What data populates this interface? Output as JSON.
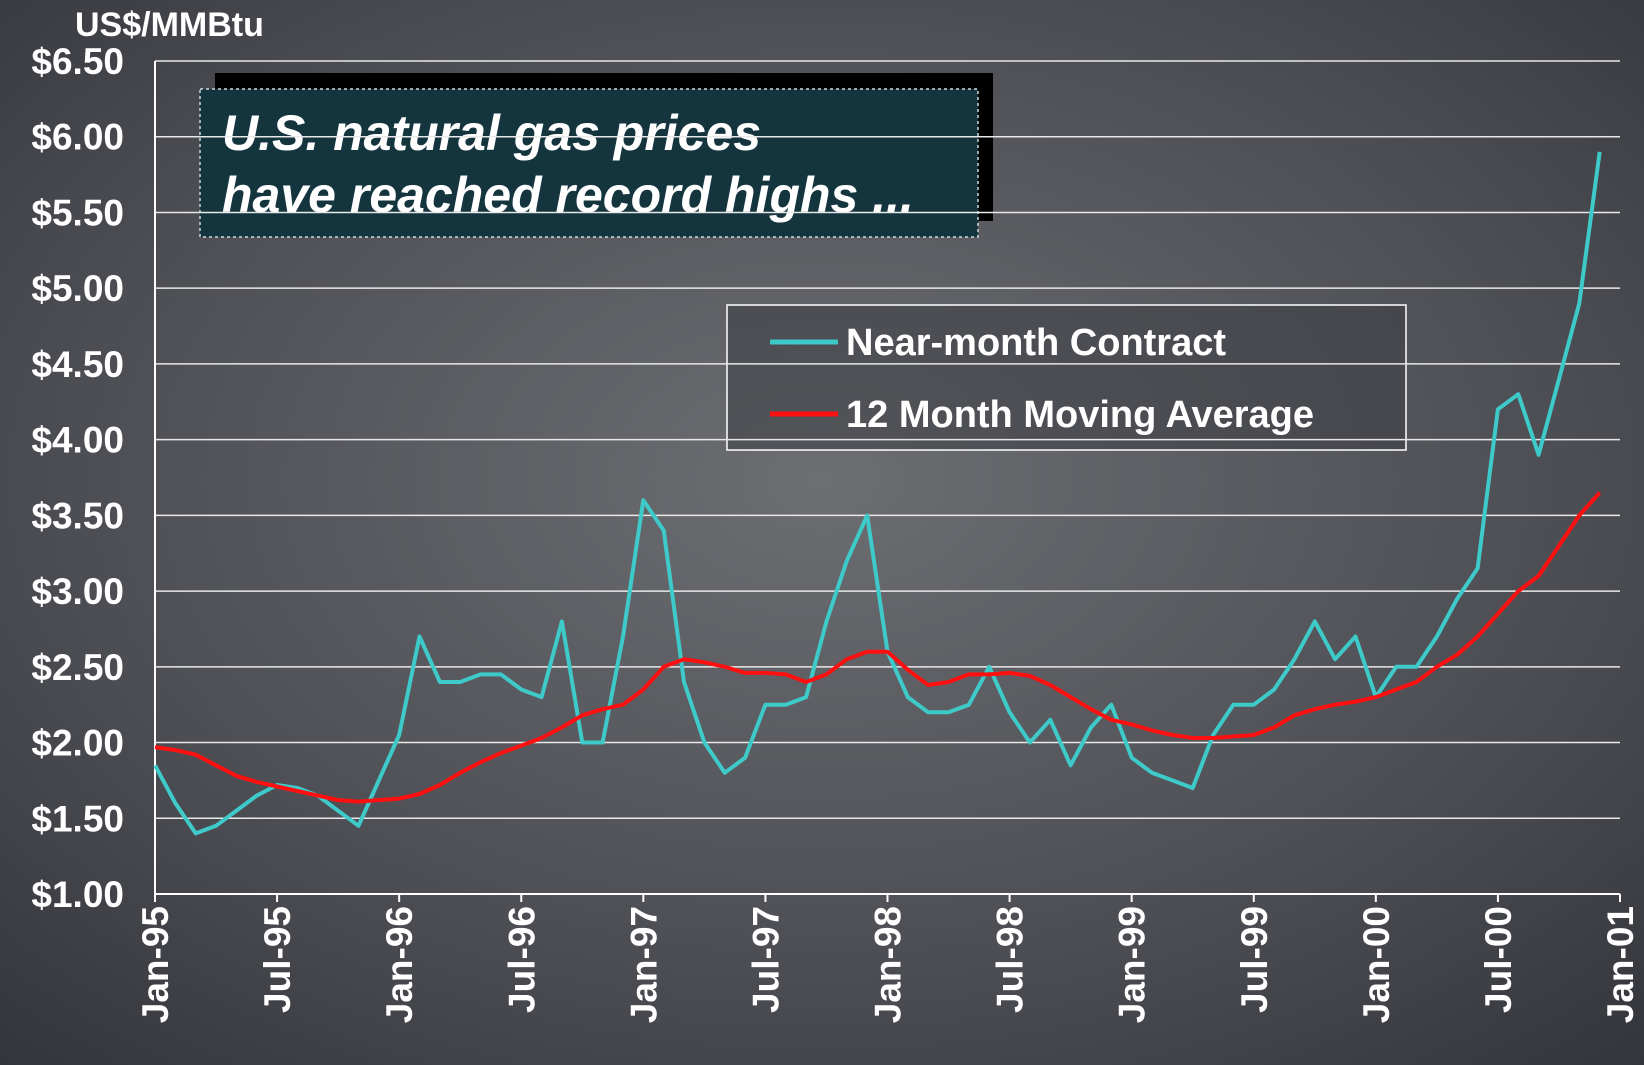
{
  "chart_data": {
    "type": "line",
    "y_label": "US$/MMBtu",
    "annotation": [
      "U.S. natural gas prices",
      "have reached record highs ..."
    ],
    "categories": [
      "Jan-95",
      null,
      null,
      null,
      null,
      null,
      "Jul-95",
      null,
      null,
      null,
      null,
      null,
      "Jan-96",
      null,
      null,
      null,
      null,
      null,
      "Jul-96",
      null,
      null,
      null,
      null,
      null,
      "Jan-97",
      null,
      null,
      null,
      null,
      null,
      "Jul-97",
      null,
      null,
      null,
      null,
      null,
      "Jan-98",
      null,
      null,
      null,
      null,
      null,
      "Jul-98",
      null,
      null,
      null,
      null,
      null,
      "Jan-99",
      null,
      null,
      null,
      null,
      null,
      "Jul-99",
      null,
      null,
      null,
      null,
      null,
      "Jan-00",
      null,
      null,
      null,
      null,
      null,
      "Jul-00",
      null,
      null,
      null,
      null,
      null,
      "Jan-01"
    ],
    "series": [
      {
        "name": "Near-month Contract",
        "color": "#3fcaca",
        "values": [
          1.85,
          1.6,
          1.4,
          1.45,
          1.55,
          1.65,
          1.72,
          1.7,
          1.65,
          1.55,
          1.45,
          1.75,
          2.05,
          2.7,
          2.4,
          2.4,
          2.45,
          2.45,
          2.35,
          2.3,
          2.8,
          2.0,
          2.0,
          2.7,
          3.6,
          3.4,
          2.4,
          2.0,
          1.8,
          1.9,
          2.25,
          2.25,
          2.3,
          2.8,
          3.2,
          3.5,
          2.6,
          2.3,
          2.2,
          2.2,
          2.25,
          2.5,
          2.2,
          2.0,
          2.15,
          1.85,
          2.1,
          2.25,
          1.9,
          1.8,
          1.75,
          1.7,
          2.05,
          2.25,
          2.25,
          2.35,
          2.55,
          2.8,
          2.55,
          2.7,
          2.3,
          2.5,
          2.5,
          2.7,
          2.95,
          3.15,
          4.2,
          4.3,
          3.9,
          4.4,
          4.9,
          5.9,
          null
        ]
      },
      {
        "name": "12 Month Moving Average",
        "color": "#ff1010",
        "values": [
          1.97,
          1.95,
          1.92,
          1.85,
          1.78,
          1.74,
          1.71,
          1.68,
          1.65,
          1.62,
          1.61,
          1.62,
          1.63,
          1.66,
          1.72,
          1.8,
          1.87,
          1.93,
          1.98,
          2.03,
          2.1,
          2.18,
          2.22,
          2.25,
          2.35,
          2.5,
          2.55,
          2.53,
          2.5,
          2.46,
          2.46,
          2.45,
          2.4,
          2.45,
          2.55,
          2.6,
          2.6,
          2.48,
          2.38,
          2.4,
          2.45,
          2.45,
          2.46,
          2.44,
          2.38,
          2.3,
          2.22,
          2.15,
          2.12,
          2.08,
          2.05,
          2.03,
          2.03,
          2.04,
          2.05,
          2.1,
          2.18,
          2.22,
          2.25,
          2.27,
          2.3,
          2.35,
          2.4,
          2.5,
          2.58,
          2.7,
          2.85,
          3.0,
          3.1,
          3.3,
          3.5,
          3.65,
          null
        ]
      }
    ],
    "ylim": [
      1.0,
      6.5
    ],
    "yticks": [
      {
        "value": 1.0,
        "label": "$1.00"
      },
      {
        "value": 1.5,
        "label": "$1.50"
      },
      {
        "value": 2.0,
        "label": "$2.00"
      },
      {
        "value": 2.5,
        "label": "$2.50"
      },
      {
        "value": 3.0,
        "label": "$3.00"
      },
      {
        "value": 3.5,
        "label": "$3.50"
      },
      {
        "value": 4.0,
        "label": "$4.00"
      },
      {
        "value": 4.5,
        "label": "$4.50"
      },
      {
        "value": 5.0,
        "label": "$5.00"
      },
      {
        "value": 5.5,
        "label": "$5.50"
      },
      {
        "value": 6.0,
        "label": "$6.00"
      },
      {
        "value": 6.5,
        "label": "$6.50"
      }
    ],
    "grid": true
  }
}
